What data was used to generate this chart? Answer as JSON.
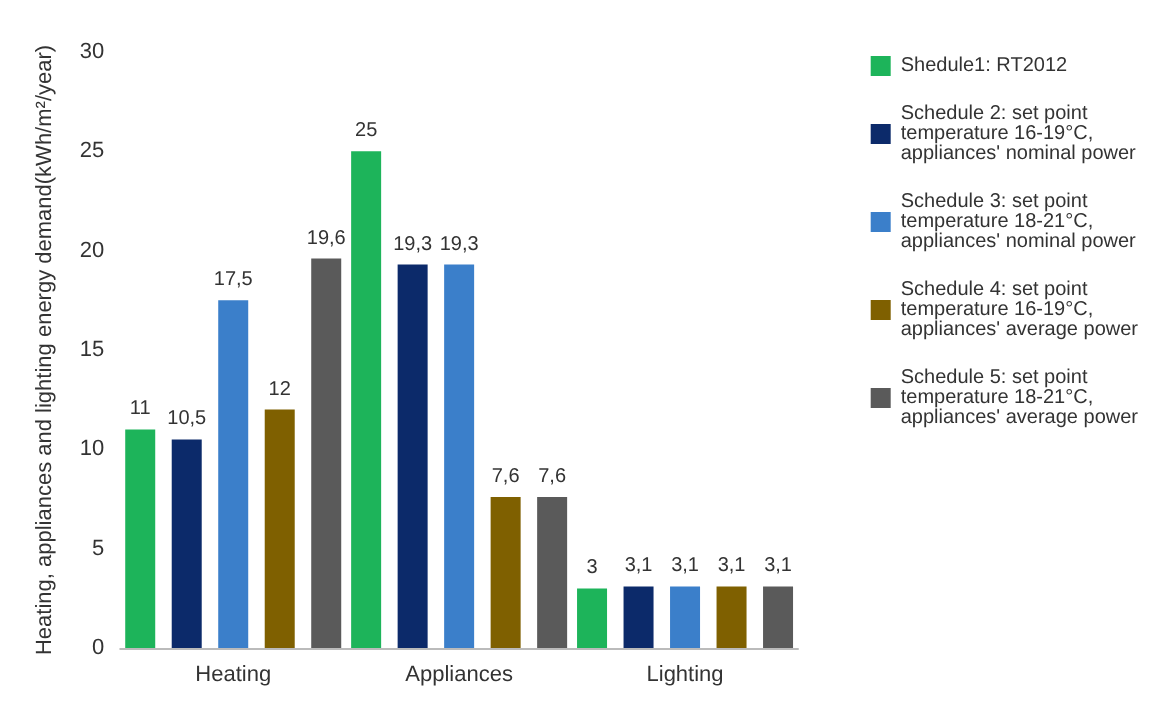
{
  "chart_data": {
    "type": "bar",
    "ylabel": "Heating, appliances and lighting energy demand(kWh/m²/year)",
    "categories": [
      "Heating",
      "Appliances",
      "Lighting"
    ],
    "series": [
      {
        "name": "Shedule1: RT2012",
        "color": "#1db45a",
        "values": [
          11,
          25,
          3
        ],
        "value_labels": [
          "11",
          "25",
          "3"
        ]
      },
      {
        "name": "Schedule 2: set point temperature 16-19°C, appliances' nominal power",
        "color": "#0c2a6a",
        "values": [
          10.5,
          19.3,
          3.1
        ],
        "value_labels": [
          "10,5",
          "19,3",
          "3,1"
        ]
      },
      {
        "name": "Schedule 3: set point temperature 18-21°C, appliances' nominal power",
        "color": "#3b7fca",
        "values": [
          17.5,
          19.3,
          3.1
        ],
        "value_labels": [
          "17,5",
          "19,3",
          "3,1"
        ]
      },
      {
        "name": "Schedule 4: set point temperature 16-19°C, appliances' average power",
        "color": "#7f6000",
        "values": [
          12,
          7.6,
          3.1
        ],
        "value_labels": [
          "12",
          "7,6",
          "3,1"
        ]
      },
      {
        "name": "Schedule 5: set point temperature 18-21°C, appliances' average power",
        "color": "#5a5a5a",
        "values": [
          19.6,
          7.6,
          3.1
        ],
        "value_labels": [
          "19,6",
          "7,6",
          "3,1"
        ]
      }
    ],
    "ylim": [
      0,
      30
    ],
    "yticks": [
      0,
      5,
      10,
      15,
      20,
      25,
      30
    ],
    "grid": false,
    "legend": "right"
  }
}
